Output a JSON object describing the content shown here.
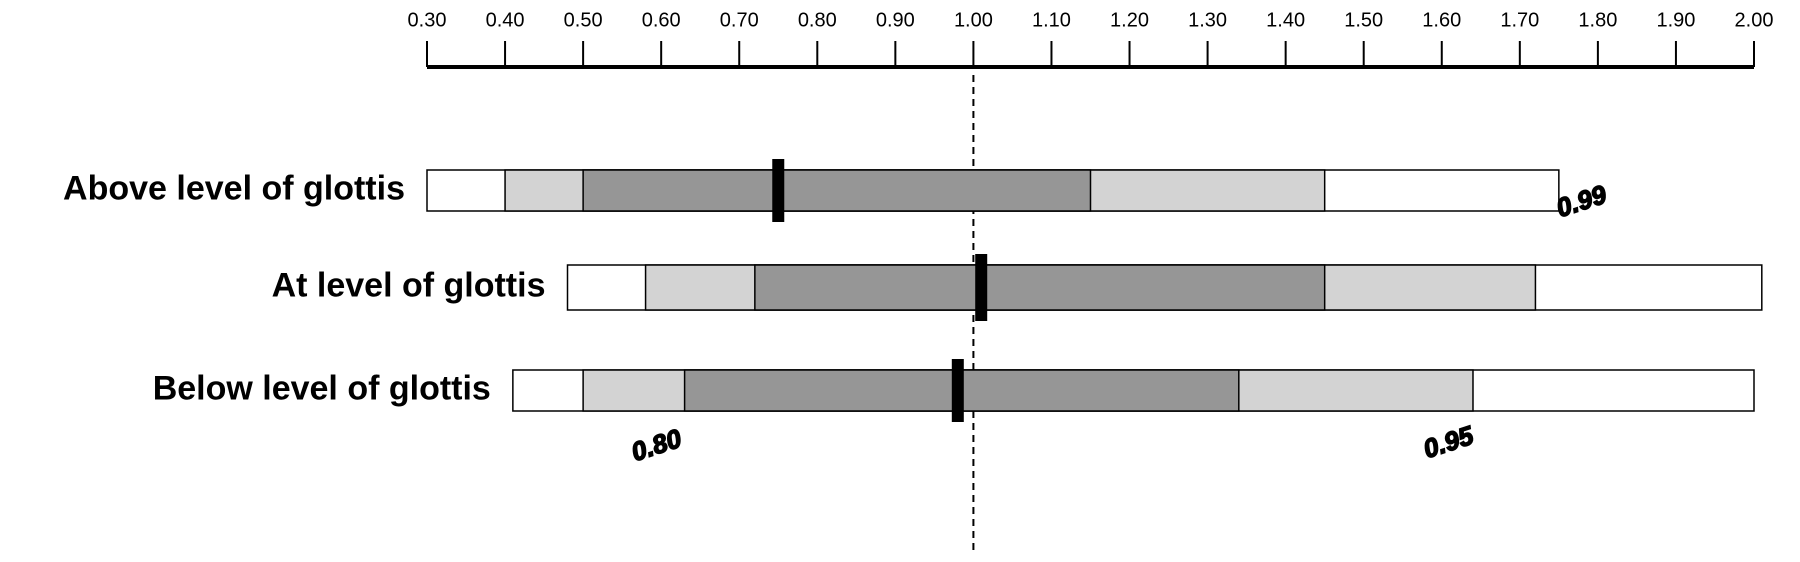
{
  "chart_data": {
    "type": "interval",
    "xlim": [
      0.3,
      2.0
    ],
    "xticks": [
      {
        "value": 0.3,
        "label": "0.30"
      },
      {
        "value": 0.4,
        "label": "0.40"
      },
      {
        "value": 0.5,
        "label": "0.50"
      },
      {
        "value": 0.6,
        "label": "0.60"
      },
      {
        "value": 0.7,
        "label": "0.70"
      },
      {
        "value": 0.8,
        "label": "0.80"
      },
      {
        "value": 0.9,
        "label": "0.90"
      },
      {
        "value": 1.0,
        "label": "1.00"
      },
      {
        "value": 1.1,
        "label": "1.10"
      },
      {
        "value": 1.2,
        "label": "1.20"
      },
      {
        "value": 1.3,
        "label": "1.30"
      },
      {
        "value": 1.4,
        "label": "1.40"
      },
      {
        "value": 1.5,
        "label": "1.50"
      },
      {
        "value": 1.6,
        "label": "1.60"
      },
      {
        "value": 1.7,
        "label": "1.70"
      },
      {
        "value": 1.8,
        "label": "1.80"
      },
      {
        "value": 1.9,
        "label": "1.90"
      },
      {
        "value": 2.0,
        "label": "2.00"
      }
    ],
    "reference": 1.0,
    "colors": [
      "#ffffff",
      "#d3d3d3",
      "#969696"
    ],
    "marker_color": "#000000",
    "rows": [
      {
        "label": "Above level of glottis",
        "intervals": [
          [
            0.3,
            1.75
          ],
          [
            0.4,
            1.45
          ],
          [
            0.5,
            1.15
          ]
        ],
        "median": 0.75
      },
      {
        "label": "At level of glottis",
        "intervals": [
          [
            0.48,
            2.01
          ],
          [
            0.58,
            1.72
          ],
          [
            0.72,
            1.45
          ]
        ],
        "median": 1.01
      },
      {
        "label": "Below level of glottis",
        "intervals": [
          [
            0.41,
            2.0
          ],
          [
            0.5,
            1.64
          ],
          [
            0.63,
            1.34
          ]
        ],
        "median": 0.98
      }
    ],
    "annotations": [
      "0.99",
      "0.80",
      "0.95"
    ]
  }
}
